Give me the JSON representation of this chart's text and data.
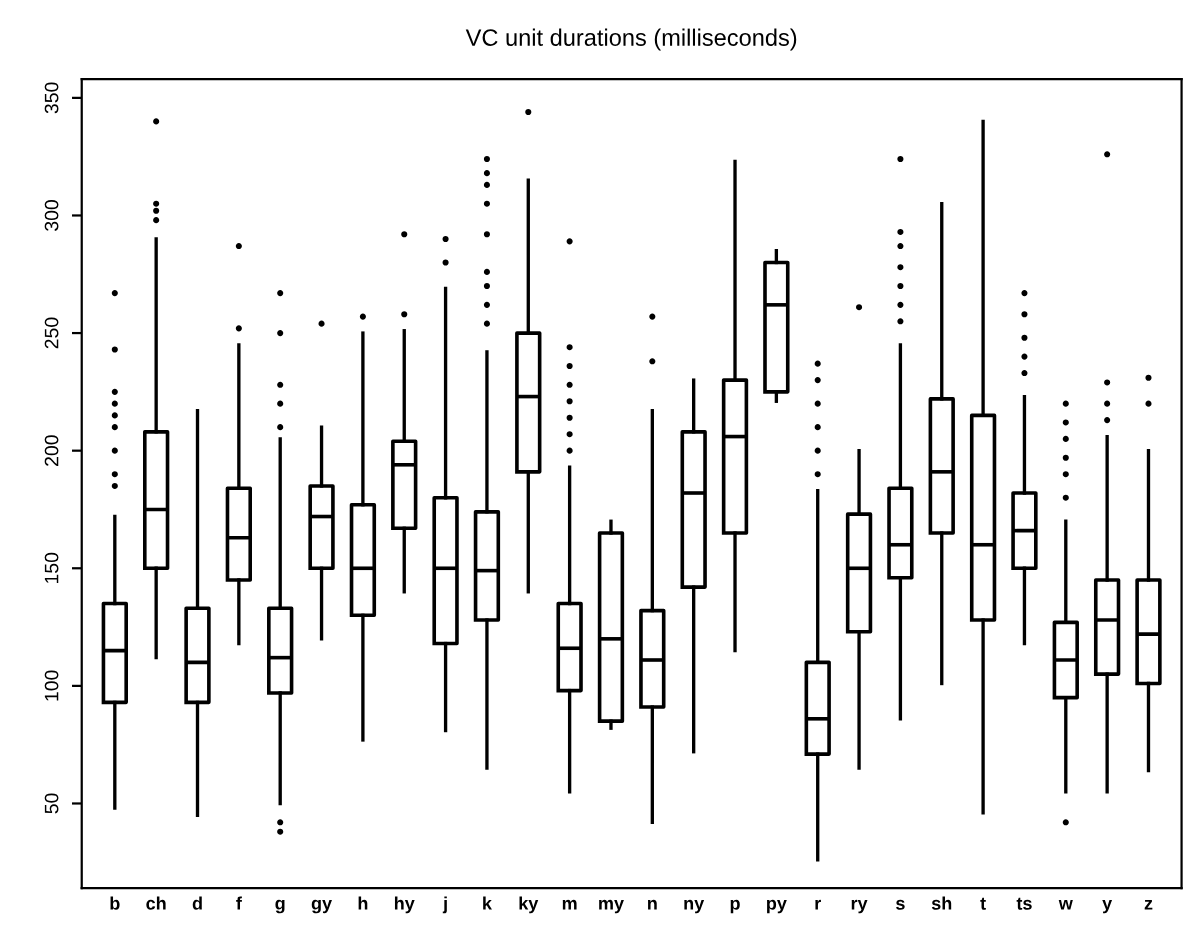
{
  "chart_data": {
    "type": "box",
    "title": "VC unit durations (milliseconds)",
    "categories": [
      "b",
      "ch",
      "d",
      "f",
      "g",
      "gy",
      "h",
      "hy",
      "j",
      "k",
      "ky",
      "m",
      "my",
      "n",
      "ny",
      "p",
      "py",
      "r",
      "ry",
      "s",
      "sh",
      "t",
      "ts",
      "w",
      "y",
      "z"
    ],
    "ylim": [
      14,
      358
    ],
    "yticks": [
      50,
      100,
      150,
      200,
      250,
      300,
      350
    ],
    "grid": false,
    "legend": false,
    "boxes": [
      {
        "low": 48,
        "q1": 93,
        "median": 115,
        "q3": 135,
        "high": 172,
        "outliers": [
          185,
          190,
          200,
          210,
          215,
          220,
          225,
          243,
          267
        ]
      },
      {
        "low": 112,
        "q1": 150,
        "median": 175,
        "q3": 208,
        "high": 290,
        "outliers": [
          298,
          302,
          305,
          340
        ]
      },
      {
        "low": 45,
        "q1": 93,
        "median": 110,
        "q3": 133,
        "high": 217
      },
      {
        "low": 118,
        "q1": 145,
        "median": 163,
        "q3": 184,
        "high": 245,
        "outliers": [
          252,
          287
        ]
      },
      {
        "low": 50,
        "q1": 97,
        "median": 112,
        "q3": 133,
        "high": 205,
        "outliers": [
          38,
          42,
          210,
          220,
          228,
          250,
          267
        ]
      },
      {
        "low": 120,
        "q1": 150,
        "median": 172,
        "q3": 185,
        "high": 210,
        "outliers": [
          254
        ]
      },
      {
        "low": 77,
        "q1": 130,
        "median": 150,
        "q3": 177,
        "high": 250,
        "outliers": [
          257
        ]
      },
      {
        "low": 140,
        "q1": 167,
        "median": 194,
        "q3": 204,
        "high": 251,
        "outliers": [
          258,
          292
        ]
      },
      {
        "low": 81,
        "q1": 118,
        "median": 150,
        "q3": 180,
        "high": 269,
        "outliers": [
          280,
          290
        ]
      },
      {
        "low": 65,
        "q1": 128,
        "median": 149,
        "q3": 174,
        "high": 242,
        "outliers": [
          254,
          262,
          270,
          276,
          292,
          305,
          313,
          318,
          324
        ]
      },
      {
        "low": 140,
        "q1": 191,
        "median": 223,
        "q3": 250,
        "high": 315,
        "outliers": [
          344
        ]
      },
      {
        "low": 55,
        "q1": 98,
        "median": 116,
        "q3": 135,
        "high": 193,
        "outliers": [
          200,
          207,
          214,
          221,
          228,
          236,
          244,
          289
        ]
      },
      {
        "low": 82,
        "q1": 85,
        "median": 120,
        "q3": 165,
        "high": 170
      },
      {
        "low": 42,
        "q1": 91,
        "median": 111,
        "q3": 132,
        "high": 217,
        "outliers": [
          238,
          257
        ]
      },
      {
        "low": 72,
        "q1": 142,
        "median": 182,
        "q3": 208,
        "high": 230
      },
      {
        "low": 115,
        "q1": 165,
        "median": 206,
        "q3": 230,
        "high": 323
      },
      {
        "low": 221,
        "q1": 225,
        "median": 262,
        "q3": 280,
        "high": 285
      },
      {
        "low": 26,
        "q1": 71,
        "median": 86,
        "q3": 110,
        "high": 183,
        "outliers": [
          190,
          200,
          210,
          220,
          230,
          237
        ]
      },
      {
        "low": 65,
        "q1": 123,
        "median": 150,
        "q3": 173,
        "high": 200,
        "outliers": [
          261
        ]
      },
      {
        "low": 86,
        "q1": 146,
        "median": 160,
        "q3": 184,
        "high": 245,
        "outliers": [
          255,
          262,
          270,
          278,
          287,
          293,
          324
        ]
      },
      {
        "low": 101,
        "q1": 165,
        "median": 191,
        "q3": 222,
        "high": 305
      },
      {
        "low": 46,
        "q1": 128,
        "median": 160,
        "q3": 215,
        "high": 340
      },
      {
        "low": 118,
        "q1": 150,
        "median": 166,
        "q3": 182,
        "high": 223,
        "outliers": [
          233,
          240,
          248,
          258,
          267
        ]
      },
      {
        "low": 55,
        "q1": 95,
        "median": 111,
        "q3": 127,
        "high": 170,
        "outliers": [
          42,
          180,
          190,
          197,
          205,
          212,
          220
        ]
      },
      {
        "low": 55,
        "q1": 105,
        "median": 128,
        "q3": 145,
        "high": 206,
        "outliers": [
          213,
          220,
          229,
          326
        ]
      },
      {
        "low": 64,
        "q1": 101,
        "median": 122,
        "q3": 145,
        "high": 200,
        "outliers": [
          220,
          231
        ]
      }
    ]
  }
}
